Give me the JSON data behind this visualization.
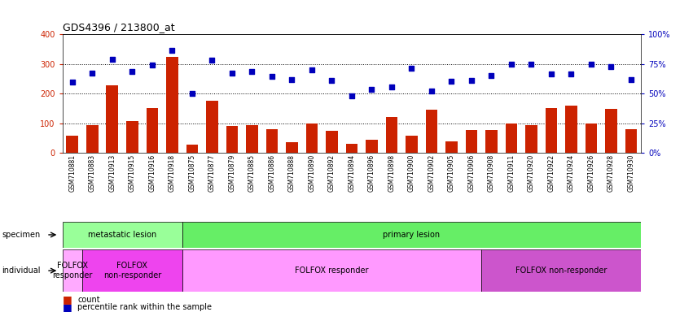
{
  "title": "GDS4396 / 213800_at",
  "samples": [
    "GSM710881",
    "GSM710883",
    "GSM710913",
    "GSM710915",
    "GSM710916",
    "GSM710918",
    "GSM710875",
    "GSM710877",
    "GSM710879",
    "GSM710885",
    "GSM710886",
    "GSM710888",
    "GSM710890",
    "GSM710892",
    "GSM710894",
    "GSM710896",
    "GSM710898",
    "GSM710900",
    "GSM710902",
    "GSM710905",
    "GSM710906",
    "GSM710908",
    "GSM710911",
    "GSM710920",
    "GSM710922",
    "GSM710924",
    "GSM710926",
    "GSM710928",
    "GSM710930"
  ],
  "counts": [
    58,
    95,
    228,
    108,
    152,
    325,
    28,
    175,
    90,
    95,
    80,
    35,
    100,
    75,
    30,
    45,
    122,
    58,
    145,
    38,
    78,
    78,
    100,
    95,
    150,
    160,
    100,
    148,
    80
  ],
  "percentiles": [
    240,
    268,
    317,
    275,
    297,
    345,
    200,
    312,
    268,
    275,
    258,
    248,
    280,
    245,
    192,
    215,
    222,
    285,
    209,
    243,
    245,
    262,
    300,
    300,
    267,
    265,
    300,
    292,
    248
  ],
  "bar_color": "#cc2200",
  "dot_color": "#0000bb",
  "specimen_groups": [
    {
      "label": "metastatic lesion",
      "start": 0,
      "end": 6,
      "color": "#99ff99"
    },
    {
      "label": "primary lesion",
      "start": 6,
      "end": 29,
      "color": "#66ee66"
    }
  ],
  "individual_groups": [
    {
      "label": "FOLFOX\nresponder",
      "start": 0,
      "end": 1,
      "color": "#ffaaff"
    },
    {
      "label": "FOLFOX\nnon-responder",
      "start": 1,
      "end": 6,
      "color": "#ee44ee"
    },
    {
      "label": "FOLFOX responder",
      "start": 6,
      "end": 21,
      "color": "#ff99ff"
    },
    {
      "label": "FOLFOX non-responder",
      "start": 21,
      "end": 29,
      "color": "#cc55cc"
    }
  ]
}
